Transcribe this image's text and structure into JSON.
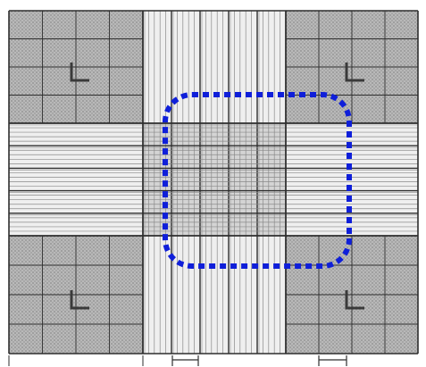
{
  "image": {
    "subject": "hemocytometer-counting-grid",
    "colors": {
      "background": "#ffffff",
      "corner_fill": "#b9b9b9",
      "corner_dots": "#8c8c8c",
      "center_fill": "#d4d4d4",
      "band_fill": "#efefef",
      "line_light": "#8a8a8a",
      "line_dark": "#2e2e2e",
      "highlight": "#0f1fd9",
      "marker": "#3a3a3a"
    },
    "grid": {
      "large_squares_per_side": 3,
      "corner_subdivisions": 4,
      "center_subdivisions": 5,
      "center_fine_lines": 4
    },
    "highlight": {
      "style": "dotted",
      "shape": "rounded-rectangle",
      "region": "center-square"
    },
    "corner_marks": [
      "top-left",
      "top-right",
      "bottom-left",
      "bottom-right"
    ],
    "scale_brackets": 2
  }
}
